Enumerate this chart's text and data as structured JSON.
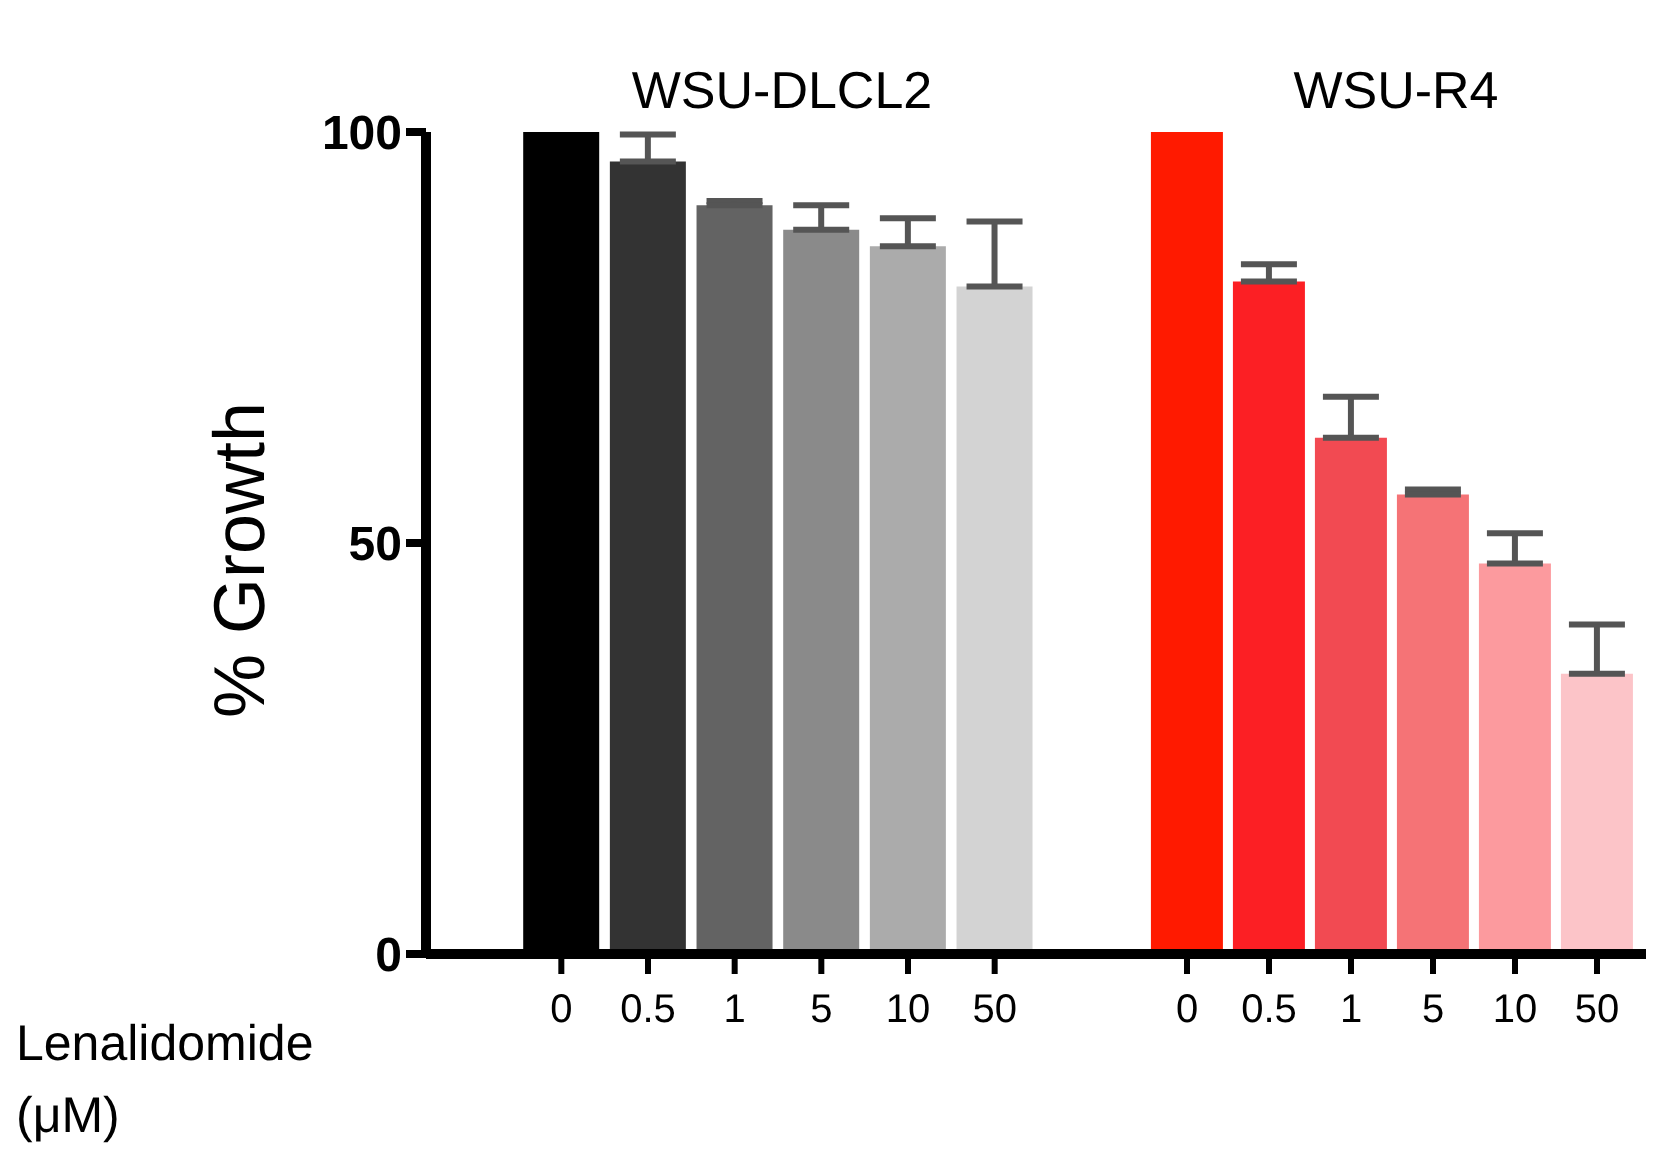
{
  "chart_data": [
    {
      "type": "bar",
      "title": "WSU-DLCL2",
      "ylabel": "% Growth",
      "xlabel": "Lenalidomide (μM)",
      "categories": [
        "0",
        "0.5",
        "1",
        "5",
        "10",
        "50"
      ],
      "values": [
        100,
        96.4,
        91.1,
        88.1,
        86.1,
        81.2
      ],
      "colors": [
        "#000000",
        "#333333",
        "#636363",
        "#8a8a8a",
        "#ababab",
        "#d3d3d3"
      ],
      "errors": [
        null,
        [
          96.4,
          99.7
        ],
        [
          91.1,
          91.6
        ],
        [
          88.1,
          91.1
        ],
        [
          86.1,
          89.5
        ],
        [
          81.2,
          89.1
        ]
      ],
      "ylim": [
        0,
        100
      ],
      "yticks": [
        0,
        50,
        100
      ],
      "grid": false,
      "legend": false
    },
    {
      "type": "bar",
      "title": "WSU-R4",
      "categories": [
        "0",
        "0.5",
        "1",
        "5",
        "10",
        "50"
      ],
      "values": [
        100,
        81.8,
        62.8,
        55.9,
        47.5,
        34.1
      ],
      "colors": [
        "#ff1a00",
        "#fc1f24",
        "#f24a52",
        "#f57376",
        "#fc9a9e",
        "#fcc4c8"
      ],
      "errors": [
        null,
        [
          81.8,
          83.9
        ],
        [
          62.8,
          67.8
        ],
        [
          55.9,
          56.5
        ],
        [
          47.5,
          51.2
        ],
        [
          34.1,
          40.1
        ]
      ],
      "ylim": [
        0,
        100
      ],
      "yticks": [
        0,
        50,
        100
      ],
      "tick_labels": "x",
      "grid": false,
      "legend": false
    }
  ]
}
